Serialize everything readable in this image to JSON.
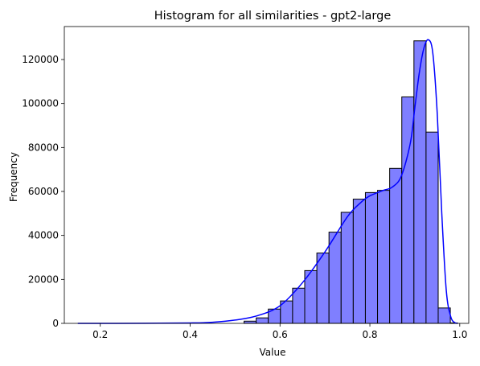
{
  "chart_data": {
    "type": "histogram",
    "title": "Histogram for all similarities - gpt2-large",
    "xlabel": "Value",
    "ylabel": "Frequency",
    "xlim": [
      0.12,
      1.02
    ],
    "ylim": [
      0,
      135000
    ],
    "xticks": [
      0.2,
      0.4,
      0.6,
      0.8,
      1.0
    ],
    "xtick_labels": [
      "0.2",
      "0.4",
      "0.6",
      "0.8",
      "1.0"
    ],
    "yticks": [
      0,
      20000,
      40000,
      60000,
      80000,
      100000,
      120000
    ],
    "ytick_labels": [
      "0",
      "20000",
      "40000",
      "60000",
      "80000",
      "100000",
      "120000"
    ],
    "grid": false,
    "bar_color": "#7f7fff",
    "bar_edge_color": "#000000",
    "kde_color": "#0000ff",
    "bins": [
      {
        "x0": 0.52,
        "x1": 0.547,
        "count": 1000
      },
      {
        "x0": 0.547,
        "x1": 0.574,
        "count": 2500
      },
      {
        "x0": 0.574,
        "x1": 0.601,
        "count": 6500
      },
      {
        "x0": 0.601,
        "x1": 0.628,
        "count": 10200
      },
      {
        "x0": 0.628,
        "x1": 0.655,
        "count": 16000
      },
      {
        "x0": 0.655,
        "x1": 0.682,
        "count": 24000
      },
      {
        "x0": 0.682,
        "x1": 0.709,
        "count": 32000
      },
      {
        "x0": 0.709,
        "x1": 0.736,
        "count": 41500
      },
      {
        "x0": 0.736,
        "x1": 0.763,
        "count": 50500
      },
      {
        "x0": 0.763,
        "x1": 0.79,
        "count": 56500
      },
      {
        "x0": 0.79,
        "x1": 0.817,
        "count": 59500
      },
      {
        "x0": 0.817,
        "x1": 0.844,
        "count": 60500
      },
      {
        "x0": 0.844,
        "x1": 0.871,
        "count": 70500
      },
      {
        "x0": 0.871,
        "x1": 0.898,
        "count": 103000
      },
      {
        "x0": 0.898,
        "x1": 0.925,
        "count": 128500
      },
      {
        "x0": 0.925,
        "x1": 0.952,
        "count": 87000
      },
      {
        "x0": 0.952,
        "x1": 0.979,
        "count": 7000
      },
      {
        "x0": 0.979,
        "x1": 0.995,
        "count": 200
      }
    ],
    "kde": {
      "x": [
        0.15,
        0.3,
        0.4,
        0.45,
        0.5,
        0.55,
        0.6,
        0.65,
        0.7,
        0.75,
        0.78,
        0.8,
        0.83,
        0.85,
        0.87,
        0.89,
        0.9,
        0.91,
        0.92,
        0.93,
        0.94,
        0.95,
        0.96,
        0.97,
        0.98,
        0.99,
        0.995
      ],
      "y": [
        0,
        50,
        200,
        500,
        1500,
        3500,
        8000,
        18500,
        32500,
        48500,
        55000,
        58000,
        60500,
        62000,
        67000,
        82000,
        98000,
        114000,
        125000,
        129000,
        123000,
        95000,
        50000,
        15000,
        3000,
        200,
        0
      ]
    }
  }
}
